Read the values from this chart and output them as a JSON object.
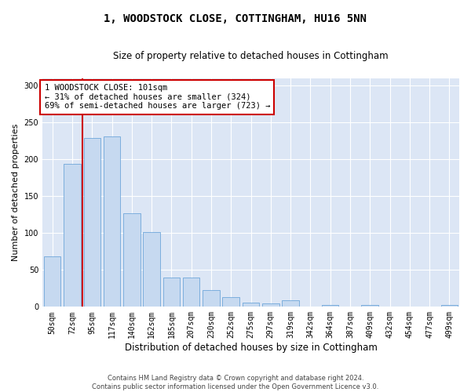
{
  "title": "1, WOODSTOCK CLOSE, COTTINGHAM, HU16 5NN",
  "subtitle": "Size of property relative to detached houses in Cottingham",
  "xlabel": "Distribution of detached houses by size in Cottingham",
  "ylabel": "Number of detached properties",
  "categories": [
    "50sqm",
    "72sqm",
    "95sqm",
    "117sqm",
    "140sqm",
    "162sqm",
    "185sqm",
    "207sqm",
    "230sqm",
    "252sqm",
    "275sqm",
    "297sqm",
    "319sqm",
    "342sqm",
    "364sqm",
    "387sqm",
    "409sqm",
    "432sqm",
    "454sqm",
    "477sqm",
    "499sqm"
  ],
  "values": [
    68,
    194,
    229,
    231,
    127,
    101,
    40,
    40,
    23,
    13,
    6,
    5,
    9,
    0,
    2,
    0,
    2,
    0,
    0,
    0,
    2
  ],
  "bar_color": "#c6d9f0",
  "bar_edge_color": "#5b9bd5",
  "property_line_x": 1.5,
  "property_line_color": "#cc0000",
  "annotation_text": "1 WOODSTOCK CLOSE: 101sqm\n← 31% of detached houses are smaller (324)\n69% of semi-detached houses are larger (723) →",
  "annotation_box_color": "#ffffff",
  "annotation_box_edge_color": "#cc0000",
  "ylim": [
    0,
    310
  ],
  "yticks": [
    0,
    50,
    100,
    150,
    200,
    250,
    300
  ],
  "footer_line1": "Contains HM Land Registry data © Crown copyright and database right 2024.",
  "footer_line2": "Contains public sector information licensed under the Open Government Licence v3.0.",
  "bg_color": "#ffffff",
  "plot_bg_color": "#dce6f5",
  "grid_color": "#ffffff",
  "title_fontsize": 10,
  "subtitle_fontsize": 8.5,
  "tick_fontsize": 7,
  "ylabel_fontsize": 8,
  "xlabel_fontsize": 8.5,
  "annotation_fontsize": 7.5,
  "footer_fontsize": 6
}
